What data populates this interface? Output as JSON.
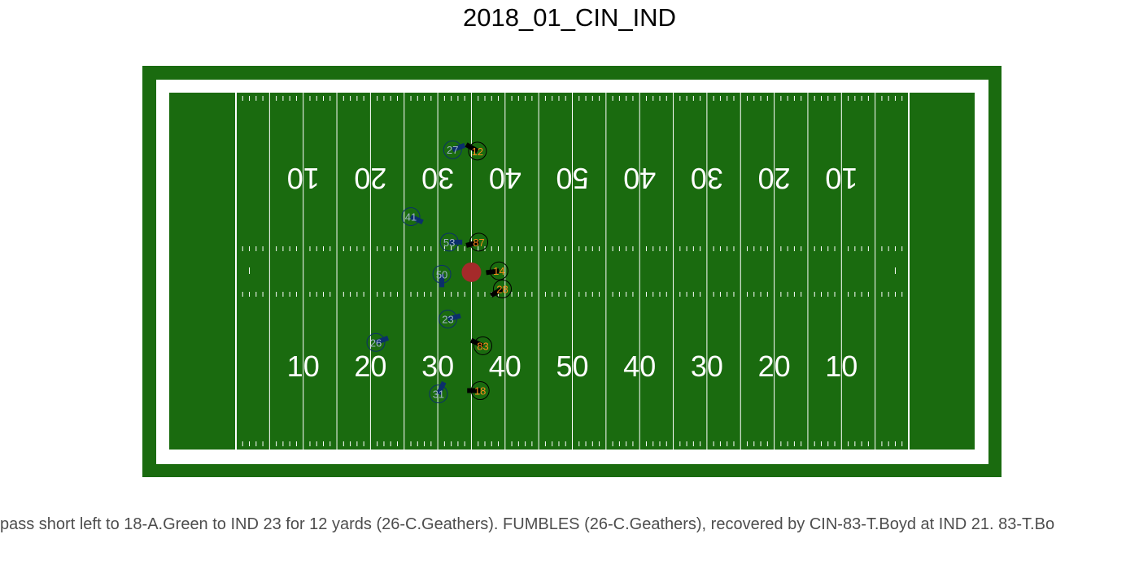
{
  "title": "2018_01_CIN_IND",
  "caption": "pass short left to 18-A.Green to IND 23 for 12 yards (26-C.Geathers). FUMBLES (26-C.Geathers), recovered by CIN-83-T.Boyd at IND 21. 83-T.Bo",
  "colors": {
    "grass": "#1a6b0f",
    "lines": "#ffffff",
    "football": "#a52a2a",
    "defense_stroke": "#0b2f6b",
    "defense_text": "#9fb3c8",
    "offense_stroke": "#000000",
    "offense_text": "#fb8c1a"
  },
  "yard_numbers": {
    "top": [
      "10",
      "20",
      "30",
      "40",
      "50",
      "40",
      "30",
      "20",
      "10"
    ],
    "bottom": [
      "10",
      "20",
      "30",
      "40",
      "50",
      "40",
      "30",
      "20",
      "10"
    ]
  },
  "football": {
    "x": 35,
    "y": 26.5
  },
  "players": [
    {
      "team": "defense",
      "jersey": "27",
      "x": 32.2,
      "y": 44.8,
      "dir": 70
    },
    {
      "team": "defense",
      "jersey": "41",
      "x": 26.0,
      "y": 34.8,
      "dir": 115
    },
    {
      "team": "defense",
      "jersey": "53",
      "x": 31.7,
      "y": 31.0,
      "dir": 90
    },
    {
      "team": "defense",
      "jersey": "50",
      "x": 30.6,
      "y": 26.2,
      "dir": 180
    },
    {
      "team": "defense",
      "jersey": "23",
      "x": 31.5,
      "y": 19.5,
      "dir": 75
    },
    {
      "team": "defense",
      "jersey": "26",
      "x": 20.8,
      "y": 16.0,
      "dir": 70
    },
    {
      "team": "defense",
      "jersey": "31",
      "x": 30.1,
      "y": 8.3,
      "dir": 25
    },
    {
      "team": "offense",
      "jersey": "12",
      "x": 35.9,
      "y": 44.6,
      "dir": 300
    },
    {
      "team": "offense",
      "jersey": "87",
      "x": 36.1,
      "y": 31.0,
      "dir": 255
    },
    {
      "team": "offense",
      "jersey": "14",
      "x": 39.1,
      "y": 26.7,
      "dir": 262
    },
    {
      "team": "offense",
      "jersey": "28",
      "x": 39.6,
      "y": 24.0,
      "dir": 240
    },
    {
      "team": "offense",
      "jersey": "83",
      "x": 36.7,
      "y": 15.5,
      "dir": 295
    },
    {
      "team": "offense",
      "jersey": "18",
      "x": 36.3,
      "y": 8.8,
      "dir": 270
    }
  ]
}
